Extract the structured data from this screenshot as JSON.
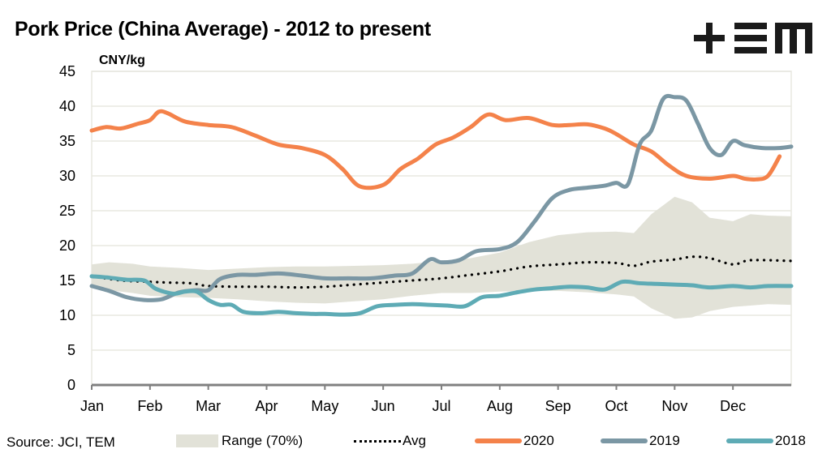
{
  "header": {
    "title": "Pork Price (China Average) - 2012 to present",
    "logo_text": "TEM",
    "logo_icon": "tem-logo-icon"
  },
  "footer": {
    "source": "Source: JCI, TEM"
  },
  "colors": {
    "s2020": "#f4824a",
    "s2019": "#7b97a4",
    "s2018": "#5eabb5",
    "avg": "#000000",
    "range": "#e2e2d8",
    "grid": "#e8e8e0",
    "axis": "#808080"
  },
  "legend": [
    {
      "key": "range",
      "label": "Range (70%)"
    },
    {
      "key": "avg",
      "label": "Avg"
    },
    {
      "key": "s2020",
      "label": "2020"
    },
    {
      "key": "s2019",
      "label": "2019"
    },
    {
      "key": "s2018",
      "label": "2018"
    }
  ],
  "chart_data": {
    "type": "line",
    "title": "Pork Price (China Average) - 2012 to present",
    "ylabel": "CNY/kg",
    "xlabel": "",
    "ylim": [
      0,
      45
    ],
    "yticks": [
      0,
      5,
      10,
      15,
      20,
      25,
      30,
      35,
      40,
      45
    ],
    "x_unit": "month index (0 = Jan start, 12 = year end)",
    "xlim": [
      0,
      12
    ],
    "categories": [
      "Jan",
      "Feb",
      "Mar",
      "Apr",
      "May",
      "Jun",
      "Jul",
      "Aug",
      "Sep",
      "Oct",
      "Nov",
      "Dec"
    ],
    "grid": "horizontal",
    "legend_position": "bottom",
    "range_band": {
      "name": "Range (70%)",
      "x": [
        0,
        0.3,
        0.7,
        1.0,
        1.5,
        2.0,
        2.5,
        3.0,
        3.5,
        4.0,
        4.5,
        5.0,
        5.5,
        6.0,
        6.5,
        7.0,
        7.5,
        8.0,
        8.5,
        9.0,
        9.3,
        9.6,
        10.0,
        10.3,
        10.6,
        11.0,
        11.3,
        11.6,
        12.0
      ],
      "upper": [
        17.3,
        17.6,
        17.4,
        17.0,
        16.8,
        16.5,
        16.7,
        16.9,
        17.0,
        17.0,
        17.1,
        17.2,
        17.4,
        17.8,
        18.2,
        19.0,
        20.5,
        21.5,
        21.9,
        22.0,
        21.8,
        24.5,
        27.0,
        26.2,
        24.0,
        23.5,
        24.5,
        24.3,
        24.2
      ],
      "lower": [
        14.0,
        13.6,
        13.2,
        12.8,
        12.6,
        12.5,
        12.3,
        12.0,
        11.8,
        11.7,
        12.0,
        12.3,
        12.8,
        13.2,
        13.2,
        13.4,
        13.5,
        13.5,
        13.3,
        13.0,
        12.7,
        11.0,
        9.5,
        9.7,
        10.6,
        11.2,
        11.4,
        11.6,
        11.5
      ]
    },
    "series": [
      {
        "name": "Avg",
        "key": "avg",
        "x": [
          0,
          0.5,
          1.0,
          1.3,
          1.7,
          2.0,
          2.5,
          3.0,
          3.5,
          4.0,
          4.5,
          5.0,
          5.5,
          6.0,
          6.5,
          7.0,
          7.5,
          8.0,
          8.5,
          9.0,
          9.3,
          9.6,
          10.0,
          10.3,
          10.6,
          11.0,
          11.3,
          12.0
        ],
        "values": [
          15.6,
          15.0,
          14.8,
          14.7,
          14.6,
          14.2,
          14.1,
          14.1,
          14.0,
          14.1,
          14.4,
          14.7,
          15.0,
          15.3,
          15.8,
          16.3,
          17.0,
          17.3,
          17.6,
          17.5,
          17.1,
          17.7,
          18.0,
          18.4,
          18.2,
          17.3,
          17.9,
          17.8
        ]
      },
      {
        "name": "2020",
        "key": "s2020",
        "x": [
          0,
          0.25,
          0.5,
          0.8,
          1.0,
          1.15,
          1.3,
          1.6,
          2.0,
          2.4,
          2.8,
          3.2,
          3.6,
          4.0,
          4.3,
          4.6,
          5.0,
          5.3,
          5.6,
          5.9,
          6.2,
          6.5,
          6.8,
          7.1,
          7.5,
          7.9,
          8.2,
          8.5,
          8.8,
          9.0,
          9.3,
          9.6,
          9.9,
          10.2,
          10.6,
          11.0,
          11.2,
          11.4,
          11.6,
          11.8
        ],
        "values": [
          36.5,
          37.0,
          36.8,
          37.5,
          38.0,
          39.2,
          39.0,
          37.8,
          37.3,
          37.0,
          35.8,
          34.5,
          34.0,
          33.0,
          31.0,
          28.5,
          28.7,
          31.0,
          32.5,
          34.5,
          35.5,
          37.0,
          38.8,
          38.0,
          38.3,
          37.3,
          37.3,
          37.4,
          36.8,
          36.0,
          34.5,
          33.5,
          31.5,
          30.0,
          29.6,
          30.0,
          29.6,
          29.5,
          30.0,
          32.8
        ]
      },
      {
        "name": "2019",
        "key": "s2019",
        "x": [
          0,
          0.3,
          0.6,
          0.9,
          1.2,
          1.5,
          1.8,
          2.0,
          2.2,
          2.5,
          2.8,
          3.2,
          3.6,
          4.0,
          4.4,
          4.8,
          5.2,
          5.5,
          5.8,
          6.0,
          6.3,
          6.6,
          7.0,
          7.3,
          7.6,
          7.9,
          8.2,
          8.5,
          8.8,
          9.0,
          9.2,
          9.4,
          9.6,
          9.8,
          10.0,
          10.2,
          10.4,
          10.6,
          10.8,
          11.0,
          11.2,
          11.5,
          11.8,
          12.0
        ],
        "values": [
          14.2,
          13.5,
          12.6,
          12.2,
          12.3,
          13.3,
          13.6,
          13.6,
          15.2,
          15.8,
          15.8,
          16.0,
          15.7,
          15.3,
          15.3,
          15.3,
          15.7,
          16.0,
          18.0,
          17.6,
          17.9,
          19.2,
          19.5,
          20.5,
          23.5,
          26.8,
          28.0,
          28.3,
          28.6,
          29.0,
          28.8,
          34.5,
          36.5,
          41.0,
          41.3,
          40.8,
          37.5,
          34.0,
          33.0,
          35.0,
          34.4,
          34.0,
          34.0,
          34.2
        ]
      },
      {
        "name": "2018",
        "key": "s2018",
        "x": [
          0,
          0.3,
          0.6,
          0.9,
          1.1,
          1.4,
          1.6,
          1.8,
          2.0,
          2.2,
          2.4,
          2.6,
          2.9,
          3.2,
          3.5,
          3.8,
          4.0,
          4.3,
          4.6,
          4.9,
          5.2,
          5.5,
          5.8,
          6.1,
          6.4,
          6.7,
          7.0,
          7.3,
          7.6,
          7.9,
          8.2,
          8.5,
          8.8,
          9.1,
          9.4,
          9.7,
          10.0,
          10.3,
          10.6,
          11.0,
          11.3,
          11.6,
          12.0
        ],
        "values": [
          15.6,
          15.4,
          15.1,
          15.0,
          13.8,
          13.1,
          13.4,
          13.4,
          12.2,
          11.5,
          11.5,
          10.5,
          10.3,
          10.5,
          10.3,
          10.2,
          10.2,
          10.1,
          10.3,
          11.3,
          11.5,
          11.6,
          11.5,
          11.4,
          11.3,
          12.6,
          12.8,
          13.3,
          13.7,
          13.9,
          14.1,
          14.0,
          13.7,
          14.8,
          14.6,
          14.5,
          14.4,
          14.3,
          14.0,
          14.2,
          14.0,
          14.2,
          14.2
        ]
      }
    ]
  }
}
